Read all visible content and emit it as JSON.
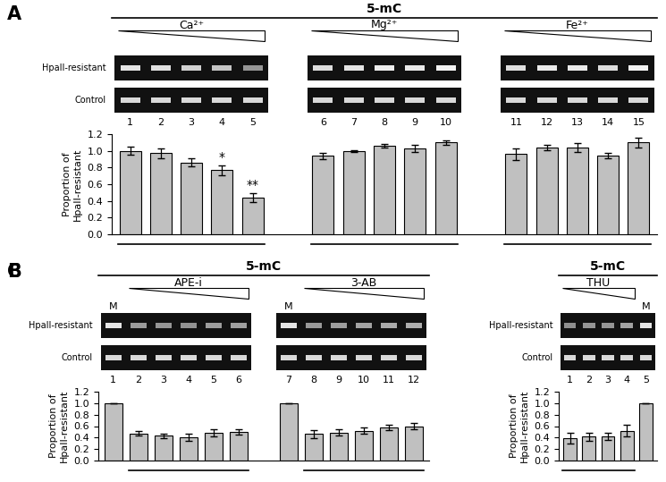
{
  "chart_data": [
    {
      "type": "bar",
      "panel": "A",
      "title": "5-mC",
      "row_labels": [
        "HpaII-resistant",
        "Control"
      ],
      "y_label": "Proportion of\nHpaII-resistant",
      "ylim": [
        0,
        1.2
      ],
      "yticks": [
        {
          "value": 0,
          "label": "0.0"
        },
        {
          "value": 0.2,
          "label": "0.2"
        },
        {
          "value": 0.4,
          "label": "0.4"
        },
        {
          "value": 0.6,
          "label": "0.6"
        },
        {
          "value": 0.8,
          "label": "0.8"
        },
        {
          "value": 1.0,
          "label": "1.0"
        },
        {
          "value": 1.2,
          "label": "1.2"
        }
      ],
      "tick_labels": "y",
      "color": "#c0c0c0",
      "groups": [
        {
          "label": "Ca²⁺",
          "lanes": [
            "1",
            "2",
            "3",
            "4",
            "5"
          ],
          "lane_labels": [
            null,
            null,
            null,
            null,
            null
          ],
          "values": [
            1.0,
            0.97,
            0.86,
            0.77,
            0.44
          ],
          "errors": [
            0.05,
            0.06,
            0.05,
            0.06,
            0.05
          ],
          "marks": [
            null,
            null,
            null,
            "*",
            "**"
          ]
        },
        {
          "label": "Mg²⁺",
          "lanes": [
            "6",
            "7",
            "8",
            "9",
            "10"
          ],
          "lane_labels": [
            null,
            null,
            null,
            null,
            null
          ],
          "values": [
            0.94,
            1.0,
            1.06,
            1.03,
            1.1
          ],
          "errors": [
            0.04,
            0.01,
            0.02,
            0.04,
            0.03
          ],
          "marks": [
            null,
            null,
            null,
            null,
            null
          ]
        },
        {
          "label": "Fe²⁺",
          "lanes": [
            "11",
            "12",
            "13",
            "14",
            "15"
          ],
          "lane_labels": [
            null,
            null,
            null,
            null,
            null
          ],
          "values": [
            0.96,
            1.04,
            1.04,
            0.94,
            1.1
          ],
          "errors": [
            0.07,
            0.03,
            0.05,
            0.03,
            0.06
          ],
          "marks": [
            null,
            null,
            null,
            null,
            null
          ]
        }
      ]
    },
    {
      "type": "bar",
      "panel": "B",
      "title": "5-mC",
      "row_labels": [
        "HpaII-resistant",
        "Control"
      ],
      "y_label": "Proportion of\nHpaII-resistant",
      "ylim": [
        0,
        1.2
      ],
      "yticks": [
        {
          "value": 0,
          "label": "0.0"
        },
        {
          "value": 0.2,
          "label": "0.2"
        },
        {
          "value": 0.4,
          "label": "0.4"
        },
        {
          "value": 0.6,
          "label": "0.6"
        },
        {
          "value": 0.8,
          "label": "0.8"
        },
        {
          "value": 1.0,
          "label": "1.0"
        },
        {
          "value": 1.2,
          "label": "1.2"
        }
      ],
      "tick_labels": "y",
      "color": "#c0c0c0",
      "groups": [
        {
          "label": "APE-i",
          "lanes": [
            "1",
            "2",
            "3",
            "4",
            "5",
            "6"
          ],
          "lane_labels": [
            "M",
            null,
            null,
            null,
            null,
            null
          ],
          "values": [
            1.0,
            0.47,
            0.43,
            0.41,
            0.48,
            0.5
          ],
          "errors": [
            0,
            0.04,
            0.04,
            0.06,
            0.06,
            0.05
          ],
          "marks": [
            null,
            null,
            null,
            null,
            null,
            null
          ]
        },
        {
          "label": "3-AB",
          "lanes": [
            "7",
            "8",
            "9",
            "10",
            "11",
            "12"
          ],
          "lane_labels": [
            "M",
            null,
            null,
            null,
            null,
            null
          ],
          "values": [
            1.0,
            0.46,
            0.49,
            0.52,
            0.58,
            0.6
          ],
          "errors": [
            0,
            0.07,
            0.05,
            0.05,
            0.05,
            0.05
          ],
          "marks": [
            null,
            null,
            null,
            null,
            null,
            null
          ]
        }
      ]
    },
    {
      "type": "bar",
      "panel": "C",
      "title": "5-mC",
      "row_labels": [
        "HpaII-resistant",
        "Control"
      ],
      "y_label": "Proportion of\nHpaII-resistant",
      "ylim": [
        0,
        1.2
      ],
      "yticks": [
        {
          "value": 0,
          "label": "0.0"
        },
        {
          "value": 0.2,
          "label": "0.2"
        },
        {
          "value": 0.4,
          "label": "0.4"
        },
        {
          "value": 0.6,
          "label": "0.6"
        },
        {
          "value": 0.8,
          "label": "0.8"
        },
        {
          "value": 1.0,
          "label": "1.0"
        },
        {
          "value": 1.2,
          "label": "1.2"
        }
      ],
      "tick_labels": "y",
      "color": "#c0c0c0",
      "groups": [
        {
          "label": "THU",
          "lanes": [
            "1",
            "2",
            "3",
            "4",
            "5"
          ],
          "lane_labels": [
            null,
            null,
            null,
            null,
            "M"
          ],
          "values": [
            0.39,
            0.42,
            0.42,
            0.52,
            1.0
          ],
          "errors": [
            0.09,
            0.07,
            0.06,
            0.1,
            0
          ],
          "marks": [
            null,
            null,
            null,
            null,
            null
          ]
        }
      ]
    }
  ]
}
